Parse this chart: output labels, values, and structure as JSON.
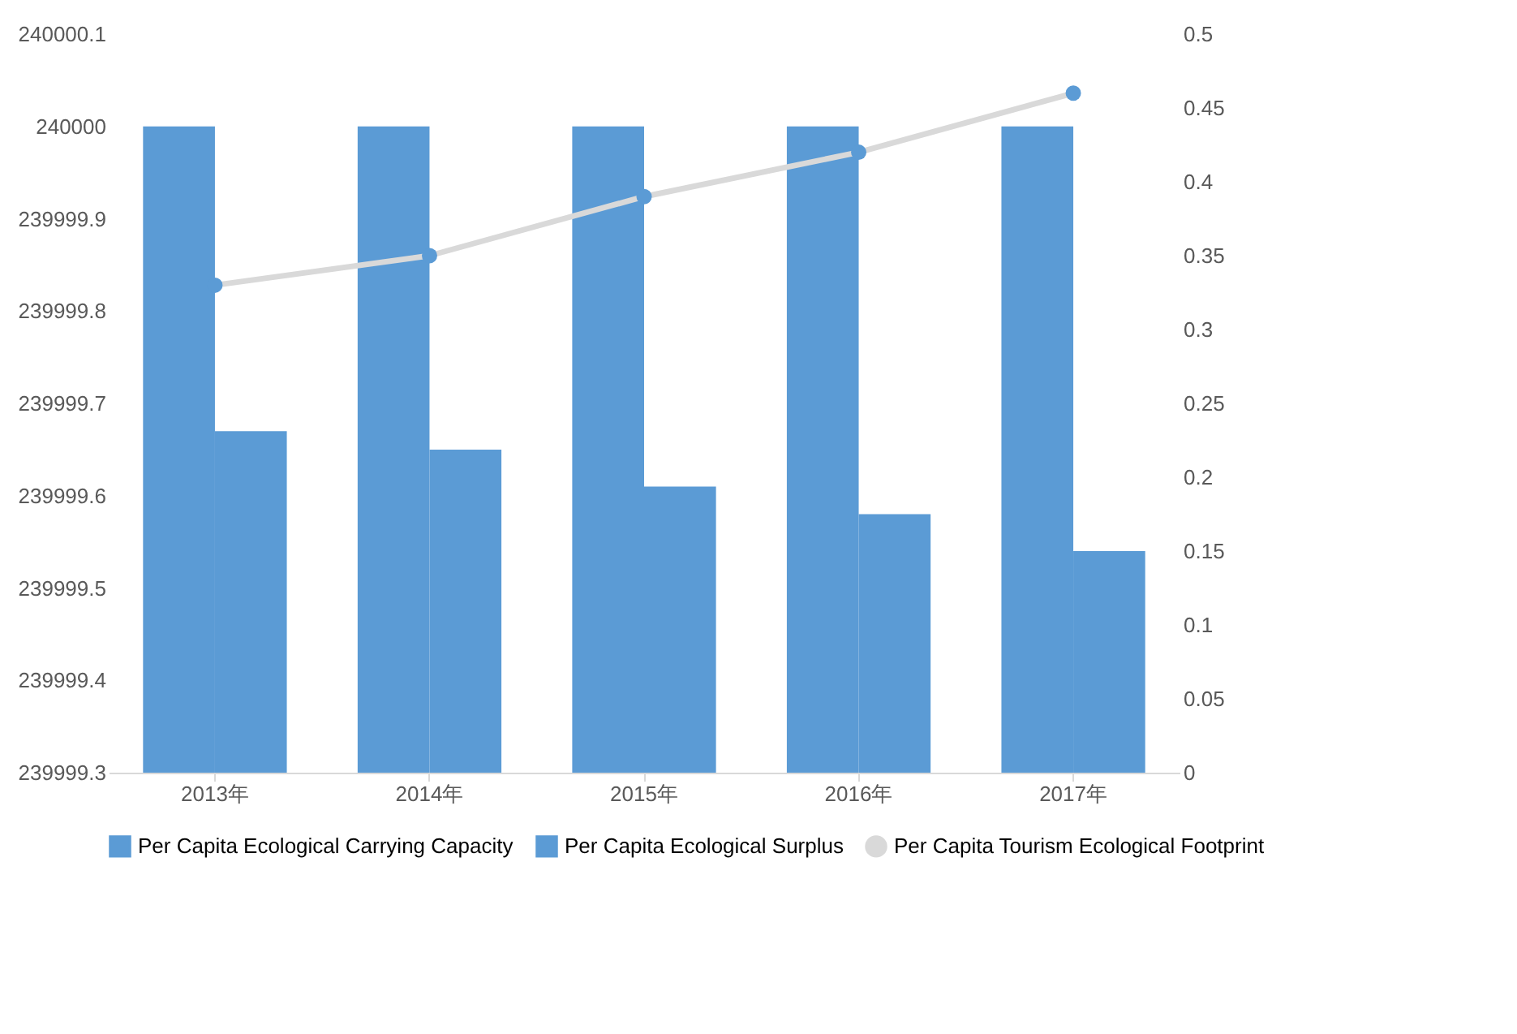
{
  "chart_data": {
    "type": "bar",
    "categories": [
      "2013年",
      "2014年",
      "2015年",
      "2016年",
      "2017年"
    ],
    "series": [
      {
        "name": "Per Capita Ecological Carrying Capacity",
        "color": "#5b9bd5",
        "values": [
          240000,
          240000,
          240000,
          240000,
          240000
        ]
      },
      {
        "name": "Per Capita Ecological Surplus",
        "color": "#5b9bd5",
        "values": [
          239999.67,
          239999.65,
          239999.61,
          239999.58,
          239999.54
        ]
      },
      {
        "name": "Per Capita Tourism Ecological Footprint",
        "type": "line",
        "axis": "y2",
        "color": "#d9d9d9",
        "marker": "circle",
        "values": [
          0.33,
          0.35,
          0.39,
          0.42,
          0.46
        ]
      }
    ],
    "ylim": [
      239999.3,
      240000.1
    ],
    "yticks": [
      239999.3,
      239999.4,
      239999.5,
      239999.6,
      239999.7,
      239999.8,
      239999.9,
      240000,
      240000.1
    ],
    "y2lim": [
      0,
      0.5
    ],
    "y2ticks": [
      0,
      0.05,
      0.1,
      0.15,
      0.2,
      0.25,
      0.3,
      0.35,
      0.4,
      0.45,
      0.5
    ],
    "grid": false,
    "legend": "bottom"
  }
}
